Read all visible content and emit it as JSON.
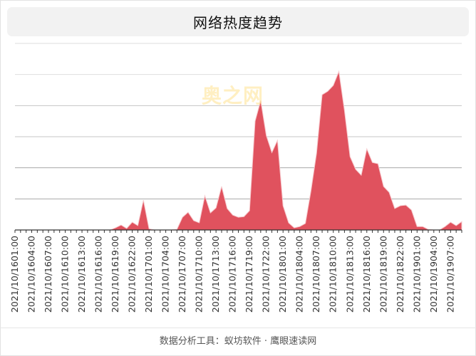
{
  "title": "网络热度趋势",
  "watermark": "奥之网",
  "footer": "数据分析工具：蚁坊软件 · 鹰眼速读网",
  "colors": {
    "area_fill": "#e0525e",
    "area_stroke": "#ffffff",
    "grid": "#c8c8c8",
    "title_bg": "#f2f2f2"
  },
  "chart_data": {
    "type": "area",
    "title": "网络热度趋势",
    "xlabel": "",
    "ylabel": "",
    "y_ticks_visible": false,
    "grid": true,
    "ylim": [
      0,
      600
    ],
    "x_label_interval_hours": 3,
    "x_tick_labels": [
      "2021/10/16 01:00",
      "2021/10/16 04:00",
      "2021/10/16 07:00",
      "2021/10/16 10:00",
      "2021/10/16 13:00",
      "2021/10/16 16:00",
      "2021/10/16 19:00",
      "2021/10/16 22:00",
      "2021/10/17 01:00",
      "2021/10/17 04:00",
      "2021/10/17 07:00",
      "2021/10/17 10:00",
      "2021/10/17 13:00",
      "2021/10/17 16:00",
      "2021/10/17 19:00",
      "2021/10/17 22:00",
      "2021/10/18 01:00",
      "2021/10/18 04:00",
      "2021/10/18 07:00",
      "2021/10/18 10:00",
      "2021/10/18 13:00",
      "2021/10/18 16:00",
      "2021/10/18 19:00",
      "2021/10/18 22:00",
      "2021/10/19 01:00",
      "2021/10/19 04:00",
      "2021/10/19 07:00"
    ],
    "x_start": "2021/10/16 01:00",
    "x_step": "1 hour",
    "series": [
      {
        "name": "网络热度",
        "values": [
          0,
          0,
          0,
          0,
          0,
          0,
          0,
          0,
          0,
          0,
          0,
          0,
          0,
          0,
          0,
          0,
          0,
          0,
          7,
          16,
          5,
          25,
          14,
          96,
          4,
          0,
          0,
          0,
          0,
          2,
          41,
          57,
          30,
          23,
          110,
          55,
          71,
          140,
          69,
          48,
          41,
          43,
          62,
          350,
          416,
          304,
          249,
          288,
          78,
          23,
          7,
          11,
          21,
          126,
          247,
          435,
          446,
          465,
          510,
          384,
          236,
          195,
          176,
          261,
          217,
          213,
          140,
          121,
          69,
          78,
          80,
          64,
          11,
          11,
          2,
          0,
          0,
          11,
          25,
          14,
          27
        ]
      }
    ]
  }
}
